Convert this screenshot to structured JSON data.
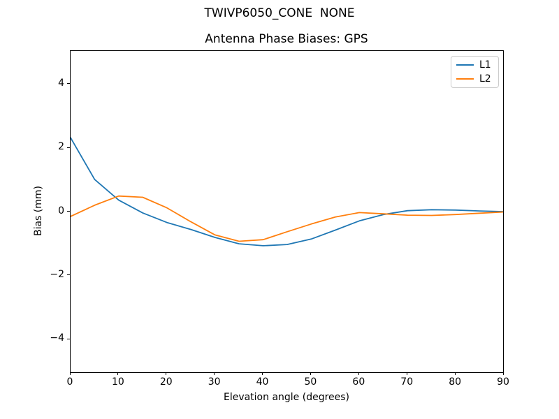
{
  "figure": {
    "suptitle": "TWIVP6050_CONE  NONE",
    "title": "Antenna Phase Biases: GPS"
  },
  "chart_data": {
    "type": "line",
    "suptitle": "TWIVP6050_CONE  NONE",
    "title": "Antenna Phase Biases: GPS",
    "xlabel": "Elevation angle (degrees)",
    "ylabel": "Bias (mm)",
    "xlim": [
      0,
      90
    ],
    "ylim": [
      -5.05,
      5.05
    ],
    "xticks": [
      0,
      10,
      20,
      30,
      40,
      50,
      60,
      70,
      80,
      90
    ],
    "xtick_labels": [
      "0",
      "10",
      "20",
      "30",
      "40",
      "50",
      "60",
      "70",
      "80",
      "90"
    ],
    "yticks": [
      -4,
      -2,
      0,
      2,
      4
    ],
    "ytick_labels": [
      "−4",
      "−2",
      "0",
      "2",
      "4"
    ],
    "grid": false,
    "legend_position": "upper right",
    "x": [
      0,
      5,
      10,
      15,
      20,
      25,
      30,
      35,
      40,
      45,
      50,
      55,
      60,
      65,
      70,
      75,
      80,
      85,
      90
    ],
    "series": [
      {
        "name": "L1",
        "color": "#1f77b4",
        "values": [
          2.33,
          1.02,
          0.37,
          -0.03,
          -0.33,
          -0.55,
          -0.8,
          -1.0,
          -1.06,
          -1.02,
          -0.85,
          -0.57,
          -0.28,
          -0.08,
          0.04,
          0.07,
          0.06,
          0.03,
          0.01
        ]
      },
      {
        "name": "L2",
        "color": "#ff7f0e",
        "values": [
          -0.14,
          0.21,
          0.5,
          0.46,
          0.13,
          -0.31,
          -0.72,
          -0.92,
          -0.87,
          -0.62,
          -0.38,
          -0.16,
          -0.02,
          -0.06,
          -0.1,
          -0.11,
          -0.08,
          -0.04,
          0.0
        ]
      }
    ]
  }
}
